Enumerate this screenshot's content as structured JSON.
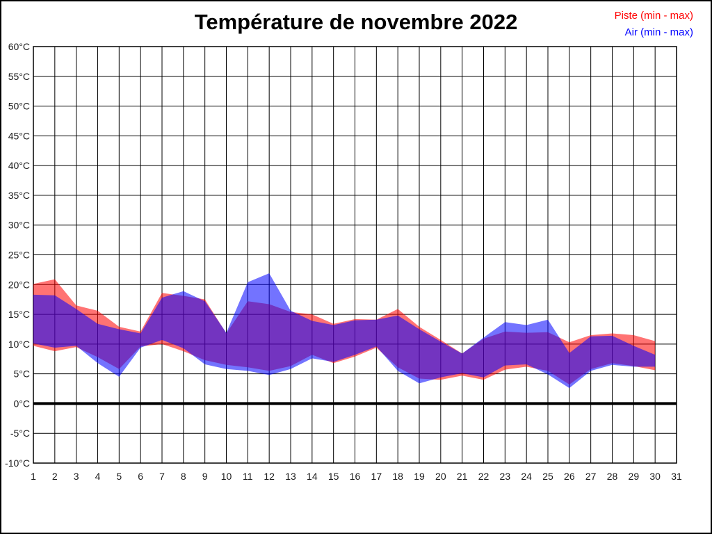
{
  "page": {
    "background": "#ffffff",
    "border_color": "#000000"
  },
  "chart_data": {
    "type": "area",
    "title": "Température de novembre 2022",
    "xlabel": "",
    "ylabel": "",
    "xlim": [
      1,
      31
    ],
    "ylim": [
      -10,
      60
    ],
    "y_tick_step": 5,
    "grid": true,
    "legend_position": "top-right",
    "zero_line": {
      "value": 0,
      "width": 4,
      "color": "#000000"
    },
    "grid_color": "#000000",
    "x_ticks": [
      "1",
      "2",
      "3",
      "4",
      "5",
      "6",
      "7",
      "8",
      "9",
      "10",
      "11",
      "12",
      "13",
      "14",
      "15",
      "16",
      "17",
      "18",
      "19",
      "20",
      "21",
      "22",
      "23",
      "24",
      "25",
      "26",
      "27",
      "28",
      "29",
      "30",
      "31"
    ],
    "y_ticks": [
      {
        "value": 60,
        "label": "60°C"
      },
      {
        "value": 55,
        "label": "55°C"
      },
      {
        "value": 50,
        "label": "50°C"
      },
      {
        "value": 45,
        "label": "45°C"
      },
      {
        "value": 40,
        "label": "40°C"
      },
      {
        "value": 35,
        "label": "35°C"
      },
      {
        "value": 30,
        "label": "30°C"
      },
      {
        "value": 25,
        "label": "25°C"
      },
      {
        "value": 20,
        "label": "20°C"
      },
      {
        "value": 15,
        "label": "15°C"
      },
      {
        "value": 10,
        "label": "10°C"
      },
      {
        "value": 5,
        "label": "5°C"
      },
      {
        "value": 0,
        "label": "0°C"
      },
      {
        "value": -5,
        "label": "-5°C"
      },
      {
        "value": -10,
        "label": "-10°C"
      }
    ],
    "x": [
      1,
      2,
      3,
      4,
      5,
      6,
      7,
      8,
      9,
      10,
      11,
      12,
      13,
      14,
      15,
      16,
      17,
      18,
      19,
      20,
      21,
      22,
      23,
      24,
      25,
      26,
      27,
      28,
      29,
      30
    ],
    "series": [
      {
        "name": "Piste (min - max)",
        "color": "#ff0000",
        "opacity": 0.55,
        "min": [
          9.7,
          8.8,
          9.5,
          7.8,
          5.8,
          9.6,
          10.0,
          8.8,
          7.3,
          6.5,
          6.1,
          5.5,
          6.3,
          8.2,
          6.8,
          7.9,
          9.4,
          6.1,
          4.2,
          4.0,
          4.7,
          4.0,
          5.7,
          6.2,
          5.5,
          3.2,
          5.8,
          6.8,
          6.3,
          5.6
        ],
        "max": [
          20.1,
          20.9,
          16.5,
          15.6,
          12.9,
          12.1,
          18.6,
          18.1,
          17.5,
          11.8,
          17.2,
          16.7,
          15.4,
          15.0,
          13.4,
          14.2,
          14.1,
          15.9,
          12.9,
          10.7,
          8.4,
          10.9,
          12.1,
          11.9,
          12.0,
          10.3,
          11.5,
          11.8,
          11.5,
          10.5
        ]
      },
      {
        "name": "Air (min - max)",
        "color": "#0000ff",
        "opacity": 0.55,
        "min": [
          10.1,
          9.4,
          9.7,
          6.8,
          4.5,
          9.4,
          10.7,
          9.3,
          6.6,
          5.8,
          5.5,
          4.8,
          5.8,
          7.6,
          7.0,
          8.2,
          9.6,
          5.5,
          3.4,
          4.4,
          5.1,
          4.4,
          6.4,
          6.6,
          4.9,
          2.6,
          5.5,
          6.5,
          6.2,
          6.2
        ],
        "max": [
          18.3,
          18.2,
          15.9,
          13.4,
          12.5,
          11.8,
          17.8,
          18.9,
          17.2,
          11.9,
          20.4,
          21.9,
          15.6,
          13.9,
          13.2,
          14.0,
          14.1,
          14.8,
          12.5,
          10.4,
          8.4,
          11.1,
          13.7,
          13.2,
          14.1,
          8.5,
          11.3,
          11.4,
          9.7,
          8.2
        ]
      }
    ]
  }
}
